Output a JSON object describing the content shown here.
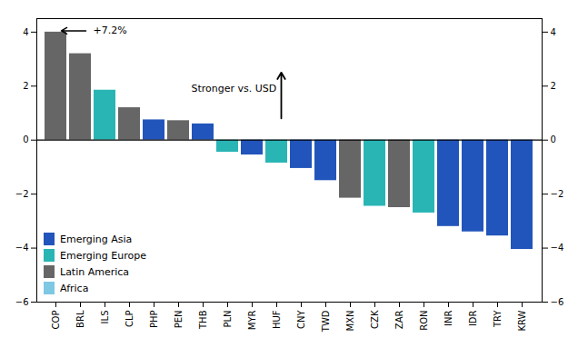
{
  "chart_data": {
    "type": "bar",
    "categories": [
      "COP",
      "BRL",
      "ILS",
      "CLP",
      "PHP",
      "PEN",
      "THB",
      "PLN",
      "MYR",
      "HUF",
      "CNY",
      "TWD",
      "MXN",
      "CZK",
      "ZAR",
      "RON",
      "INR",
      "IDR",
      "TRY",
      "KRW"
    ],
    "values": [
      4.0,
      3.2,
      1.85,
      1.2,
      0.75,
      0.72,
      0.6,
      -0.45,
      -0.55,
      -0.85,
      -1.05,
      -1.5,
      -2.15,
      -2.45,
      -2.5,
      -2.7,
      -3.2,
      -3.4,
      -3.55,
      -4.05
    ],
    "colors": [
      "#666666",
      "#666666",
      "#2ab5b5",
      "#666666",
      "#2255bb",
      "#666666",
      "#2255bb",
      "#2ab5b5",
      "#2255bb",
      "#2ab5b5",
      "#2255bb",
      "#2255bb",
      "#666666",
      "#2ab5b5",
      "#666666",
      "#2ab5b5",
      "#2255bb",
      "#2255bb",
      "#2255bb",
      "#2255bb"
    ],
    "ylim": [
      -6,
      4.5
    ],
    "yticks": [
      -6,
      -4,
      -2,
      0,
      2,
      4
    ],
    "annotations": [
      "+7.2%",
      "Stronger vs. USD"
    ],
    "legend": "lower left",
    "legend_entries": [
      {
        "name": "Emerging Asia",
        "color": "#2255bb"
      },
      {
        "name": "Emerging Europe",
        "color": "#2ab5b5"
      },
      {
        "name": "Latin America",
        "color": "#666666"
      },
      {
        "name": "Africa",
        "color": "#7ec8e3"
      }
    ],
    "grid": false
  }
}
